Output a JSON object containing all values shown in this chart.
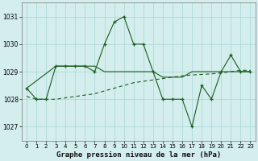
{
  "title": "Graphe pression niveau de la mer (hPa)",
  "background_color": "#d4eded",
  "grid_color": "#a8d4d4",
  "line_color": "#1a5c1a",
  "ylim": [
    1026.5,
    1031.5
  ],
  "xlim": [
    -0.5,
    23.5
  ],
  "yticks": [
    1027,
    1028,
    1029,
    1030,
    1031
  ],
  "xticks": [
    0,
    1,
    2,
    3,
    4,
    5,
    6,
    7,
    8,
    9,
    10,
    11,
    12,
    13,
    14,
    15,
    16,
    17,
    18,
    19,
    20,
    21,
    22,
    23
  ],
  "series_main_x": [
    0,
    1,
    2,
    3,
    4,
    5,
    6,
    7,
    8,
    9,
    10,
    11,
    12,
    13,
    14,
    15,
    16,
    17,
    18,
    19,
    20,
    21,
    22,
    23
  ],
  "series_main_y": [
    1028.4,
    1028.0,
    1028.0,
    1029.2,
    1029.2,
    1029.2,
    1029.2,
    1029.0,
    1030.0,
    1030.8,
    1031.0,
    1030.0,
    1030.0,
    1029.0,
    1028.0,
    1028.0,
    1028.0,
    1027.0,
    1028.5,
    1028.0,
    1029.0,
    1029.6,
    1029.0,
    1029.0
  ],
  "series_trend_x": [
    0,
    1,
    2,
    3,
    4,
    5,
    6,
    7,
    8,
    9,
    10,
    11,
    12,
    13,
    14,
    15,
    16,
    17,
    18,
    19,
    20,
    21,
    22,
    23
  ],
  "series_trend_y": [
    1028.1,
    1028.0,
    1028.0,
    1028.0,
    1028.05,
    1028.1,
    1028.15,
    1028.2,
    1028.3,
    1028.4,
    1028.5,
    1028.6,
    1028.65,
    1028.7,
    1028.75,
    1028.8,
    1028.85,
    1028.88,
    1028.9,
    1028.92,
    1028.95,
    1029.0,
    1029.05,
    1029.05
  ],
  "series_flat_x": [
    0,
    3,
    4,
    5,
    6,
    7,
    8,
    9,
    10,
    11,
    12,
    13,
    14,
    15,
    16,
    17,
    18,
    19,
    20,
    21,
    22,
    23
  ],
  "series_flat_y": [
    1028.4,
    1029.2,
    1029.2,
    1029.2,
    1029.2,
    1029.2,
    1029.0,
    1029.0,
    1029.0,
    1029.0,
    1029.0,
    1029.0,
    1028.8,
    1028.8,
    1028.8,
    1029.0,
    1029.0,
    1029.0,
    1029.0,
    1029.0,
    1029.0,
    1029.0
  ]
}
